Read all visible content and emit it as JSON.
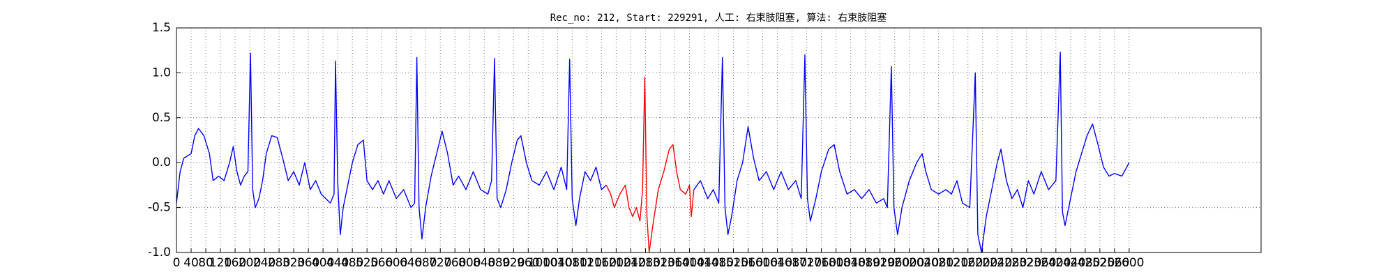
{
  "chart_data": {
    "type": "line",
    "title": "Rec_no: 212, Start: 229291, 人工: 右束肢阻塞, 算法: 右束肢阻塞",
    "xlim": [
      0,
      2960
    ],
    "xticks": [
      0,
      40,
      80,
      120,
      160,
      200,
      240,
      280,
      320,
      360,
      400,
      440,
      480,
      520,
      560,
      600,
      640,
      680,
      720,
      760,
      800,
      840,
      880,
      920,
      960,
      1000,
      1040,
      1080,
      1120,
      1160,
      1200,
      1240,
      1280,
      1320,
      1360,
      1400,
      1440,
      1480,
      1520,
      1560,
      1600,
      1640,
      1680,
      1720,
      1760,
      1800,
      1840,
      1880,
      1920,
      1960,
      2000,
      2040,
      2080,
      2120,
      2160,
      2200,
      2240,
      2280,
      2320,
      2360,
      2400,
      2440,
      2480,
      2520,
      2560,
      2600
    ],
    "ylim": [
      -1.0,
      1.5
    ],
    "yticks": [
      {
        "value": -1.0,
        "label": "-1.0"
      },
      {
        "value": -0.5,
        "label": "-0.5"
      },
      {
        "value": 0.0,
        "label": "0.0"
      },
      {
        "value": 0.5,
        "label": "0.5"
      },
      {
        "value": 1.0,
        "label": "1.0"
      },
      {
        "value": 1.5,
        "label": "1.5"
      }
    ],
    "grid": true,
    "series": [
      {
        "color": "#0000ff",
        "x": [
          0,
          10,
          20,
          40,
          50,
          60,
          75,
          90,
          100,
          115,
          130,
          145,
          155,
          165,
          175,
          185,
          195,
          202,
          208,
          215,
          225,
          235,
          245,
          260,
          275,
          290,
          305,
          320,
          335,
          350,
          365,
          380,
          395,
          420,
          430,
          434,
          440,
          447,
          455,
          465,
          480,
          495,
          510,
          520,
          535,
          550,
          565,
          580,
          600,
          620,
          640,
          650,
          656,
          662,
          670,
          680,
          695,
          710,
          725,
          740,
          755,
          770,
          790,
          810,
          830,
          850,
          860,
          868,
          875,
          885,
          900,
          915,
          930,
          940,
          955,
          970,
          990,
          1010,
          1030,
          1050,
          1065,
          1073,
          1080,
          1090,
          1100,
          1115,
          1130,
          1145,
          1160,
          1173
        ],
        "values": [
          -0.45,
          -0.1,
          0.05,
          0.1,
          0.3,
          0.38,
          0.3,
          0.1,
          -0.2,
          -0.15,
          -0.2,
          0.0,
          0.18,
          -0.1,
          -0.25,
          -0.15,
          -0.1,
          1.22,
          -0.3,
          -0.5,
          -0.4,
          -0.2,
          0.1,
          0.3,
          0.28,
          0.05,
          -0.2,
          -0.1,
          -0.25,
          0.0,
          -0.3,
          -0.2,
          -0.35,
          -0.45,
          -0.35,
          1.13,
          -0.2,
          -0.8,
          -0.5,
          -0.3,
          0.0,
          0.2,
          0.25,
          -0.2,
          -0.3,
          -0.2,
          -0.35,
          -0.2,
          -0.4,
          -0.3,
          -0.5,
          -0.45,
          1.17,
          -0.5,
          -0.85,
          -0.5,
          -0.15,
          0.1,
          0.35,
          0.1,
          -0.25,
          -0.15,
          -0.3,
          -0.1,
          -0.3,
          -0.35,
          -0.2,
          1.16,
          -0.4,
          -0.5,
          -0.3,
          0.0,
          0.25,
          0.3,
          0.0,
          -0.2,
          -0.25,
          -0.1,
          -0.3,
          -0.05,
          -0.3,
          1.15,
          -0.4,
          -0.7,
          -0.4,
          -0.1,
          -0.2,
          -0.05,
          -0.3,
          -0.25
        ]
      },
      {
        "color": "#ff0000",
        "x": [
          1173,
          1185,
          1195,
          1210,
          1225,
          1235,
          1245,
          1255,
          1265,
          1272,
          1278,
          1284,
          1290,
          1300,
          1315,
          1330,
          1345,
          1355,
          1365,
          1375,
          1390,
          1400,
          1405,
          1412
        ],
        "values": [
          -0.25,
          -0.35,
          -0.5,
          -0.35,
          -0.25,
          -0.5,
          -0.6,
          -0.5,
          -0.65,
          -0.3,
          0.95,
          -0.6,
          -1.0,
          -0.7,
          -0.3,
          -0.1,
          0.15,
          0.2,
          -0.1,
          -0.3,
          -0.35,
          -0.25,
          -0.6,
          -0.3
        ]
      },
      {
        "color": "#0000ff",
        "x": [
          1412,
          1430,
          1450,
          1465,
          1480,
          1490,
          1497,
          1505,
          1515,
          1530,
          1545,
          1560,
          1575,
          1590,
          1610,
          1630,
          1650,
          1670,
          1690,
          1705,
          1715,
          1722,
          1730,
          1745,
          1760,
          1780,
          1795,
          1810,
          1830,
          1850,
          1870,
          1890,
          1910,
          1930,
          1940,
          1951,
          1958,
          1968,
          1980,
          2000,
          2020,
          2035,
          2045,
          2060,
          2080,
          2100,
          2115,
          2130,
          2145,
          2165,
          2180,
          2187,
          2197,
          2210,
          2225,
          2240,
          2250,
          2265,
          2280,
          2295,
          2310,
          2325,
          2340,
          2360,
          2380,
          2400,
          2412,
          2418,
          2425,
          2440,
          2455,
          2470,
          2485,
          2500,
          2515,
          2530,
          2545,
          2560,
          2580,
          2600
        ],
        "values": [
          -0.3,
          -0.2,
          -0.4,
          -0.3,
          -0.45,
          1.17,
          -0.5,
          -0.8,
          -0.6,
          -0.2,
          0.0,
          0.4,
          0.05,
          -0.2,
          -0.1,
          -0.3,
          -0.1,
          -0.3,
          -0.2,
          -0.4,
          1.2,
          -0.4,
          -0.65,
          -0.4,
          -0.1,
          0.15,
          0.2,
          -0.1,
          -0.35,
          -0.3,
          -0.4,
          -0.3,
          -0.45,
          -0.4,
          -0.5,
          1.07,
          -0.5,
          -0.8,
          -0.5,
          -0.2,
          0.0,
          0.1,
          -0.1,
          -0.3,
          -0.35,
          -0.3,
          -0.35,
          -0.2,
          -0.45,
          -0.5,
          1.0,
          -0.8,
          -1.0,
          -0.6,
          -0.3,
          0.0,
          0.15,
          -0.2,
          -0.4,
          -0.3,
          -0.5,
          -0.2,
          -0.35,
          -0.1,
          -0.3,
          -0.2,
          1.23,
          -0.55,
          -0.7,
          -0.4,
          -0.1,
          0.1,
          0.3,
          0.43,
          0.2,
          -0.05,
          -0.15,
          -0.12,
          -0.15,
          0.0
        ]
      }
    ]
  }
}
